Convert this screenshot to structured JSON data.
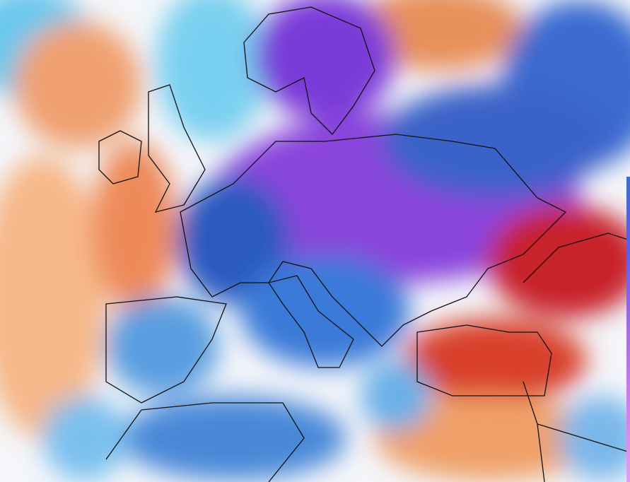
{
  "map": {
    "region": "Europe",
    "layer": "temperature-anomaly",
    "colors": {
      "very_cold": "#7a3ad8",
      "cold": "#2a5ac0",
      "cool": "#5ab8ea",
      "neutral": "#f4f6fa",
      "warm": "#f4b080",
      "hot": "#e04a2a",
      "very_hot": "#c0182a",
      "borders": "#111111"
    }
  }
}
